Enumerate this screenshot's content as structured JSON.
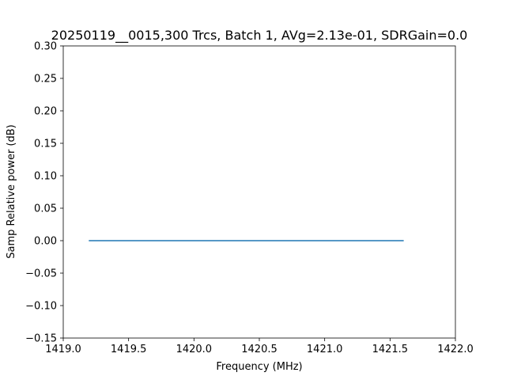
{
  "chart_data": {
    "type": "line",
    "title": "20250119__0015,300 Trcs, Batch 1, AVg=2.13e-01, SDRGain=0.0",
    "xlabel": "Frequency (MHz)",
    "ylabel": "Samp Relative power (dB)",
    "xlim": [
      1419.0,
      1422.0
    ],
    "ylim": [
      -0.15,
      0.3
    ],
    "x_ticks": [
      1419.0,
      1419.5,
      1420.0,
      1420.5,
      1421.0,
      1421.5,
      1422.0
    ],
    "x_tick_labels": [
      "1419.0",
      "1419.5",
      "1420.0",
      "1420.5",
      "1421.0",
      "1421.5",
      "1422.0"
    ],
    "y_ticks": [
      -0.15,
      -0.1,
      -0.05,
      0.0,
      0.05,
      0.1,
      0.15,
      0.2,
      0.25,
      0.3
    ],
    "y_tick_labels": [
      "−0.15",
      "−0.10",
      "−0.05",
      "0.00",
      "0.05",
      "0.10",
      "0.15",
      "0.20",
      "0.25",
      "0.30"
    ],
    "grid": false,
    "series": [
      {
        "x": [
          1419.2,
          1421.6
        ],
        "y": [
          0.0,
          0.0
        ],
        "color": "#1f77b4"
      }
    ]
  }
}
